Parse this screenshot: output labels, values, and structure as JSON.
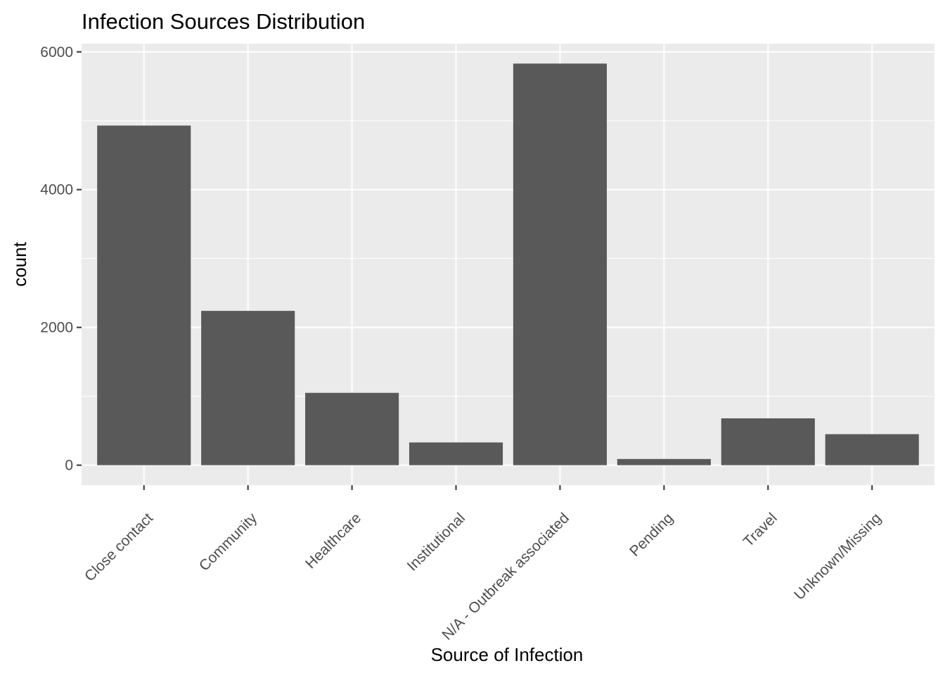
{
  "chart_data": {
    "type": "bar",
    "title": "Infection Sources Distribution",
    "xlabel": "Source of Infection",
    "ylabel": "count",
    "categories": [
      "Close contact",
      "Community",
      "Healthcare",
      "Institutional",
      "N/A - Outbreak associated",
      "Pending",
      "Travel",
      "Unknown/Missing"
    ],
    "values": [
      4930,
      2240,
      1050,
      330,
      5830,
      90,
      680,
      450
    ],
    "ylim": [
      -290,
      6120
    ],
    "yticks": [
      0,
      2000,
      4000,
      6000
    ],
    "ytick_labels": [
      "0",
      "2000",
      "4000",
      "6000"
    ],
    "grid": true,
    "legend": "none",
    "colors": {
      "panel": "#EBEBEB",
      "grid": "#FFFFFF",
      "bar": "#595959",
      "tick_text": "#4D4D4D",
      "tick_mark": "#333333"
    }
  }
}
